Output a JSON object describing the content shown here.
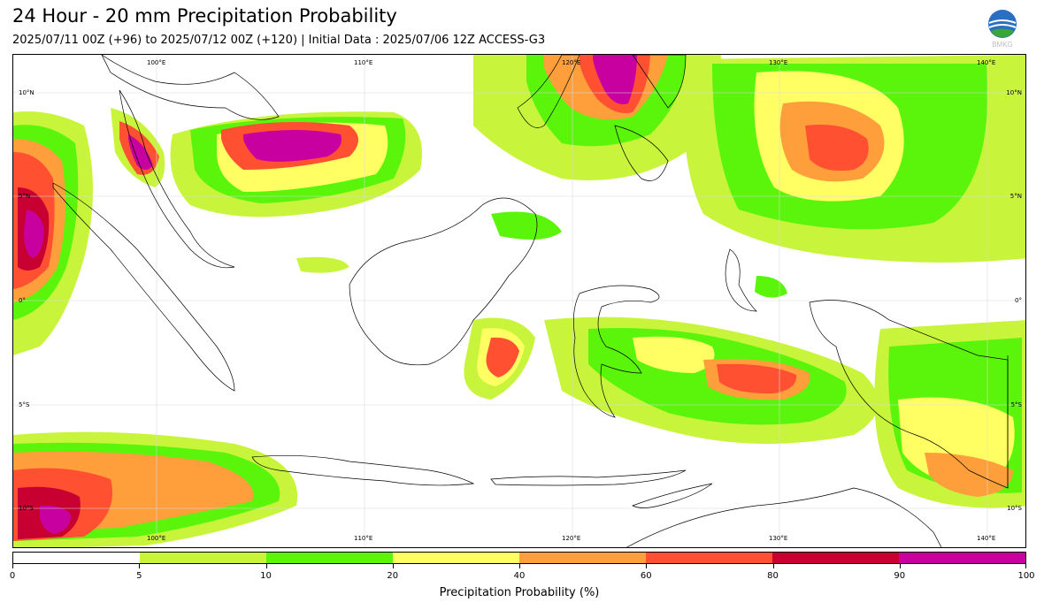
{
  "header": {
    "title": "24 Hour - 20 mm Precipitation Probability",
    "subtitle": "2025/07/11 00Z (+96) to 2025/07/12 00Z (+120) | Initial Data : 2025/07/06 12Z ACCESS-G3"
  },
  "logo": {
    "text": "BMKG",
    "icon": "bmkg-globe-logo"
  },
  "map": {
    "region": "Indonesia and surrounding waters",
    "lon_range": [
      90.4,
      144.5
    ],
    "lat_range": [
      -12.3,
      11.3
    ],
    "gridlines": true,
    "lon_labels": [
      "100°E",
      "110°E",
      "120°E",
      "130°E",
      "140°E"
    ],
    "lat_labels_left": [
      "10°N",
      "5°N",
      "0°",
      "5°S",
      "10°S"
    ],
    "lat_labels_right": [
      "10°N",
      "5°N",
      "0°",
      "5°S",
      "10°S"
    ]
  },
  "colorbar": {
    "title": "Precipitation Probability (%)",
    "ticks": [
      "0",
      "5",
      "10",
      "20",
      "40",
      "60",
      "80",
      "90",
      "100"
    ],
    "colors": [
      "#ffffff",
      "#c8f53c",
      "#5af50a",
      "#ffff64",
      "#ff9f3c",
      "#ff5032",
      "#c80032",
      "#c800a0"
    ]
  }
}
